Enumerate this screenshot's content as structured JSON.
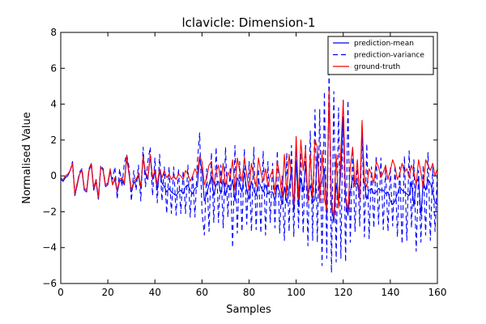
{
  "chart_data": {
    "type": "line",
    "title": "lclavicle: Dimension-1",
    "xlabel": "Samples",
    "ylabel": "Normalised Value",
    "xlim": [
      0,
      160
    ],
    "ylim": [
      -6,
      8
    ],
    "xticks": [
      0,
      20,
      40,
      60,
      80,
      100,
      120,
      140,
      160
    ],
    "yticks": [
      -6,
      -4,
      -2,
      0,
      2,
      4,
      6,
      8
    ],
    "grid": false,
    "legend_position": "top-right",
    "series": [
      {
        "name": "prediction-mean",
        "color": "#0000ff",
        "style": "solid",
        "x": [
          0,
          1,
          2,
          3,
          4,
          5,
          6,
          7,
          8,
          9,
          10,
          11,
          12,
          13,
          14,
          15,
          16,
          17,
          18,
          19,
          20,
          21,
          22,
          23,
          24,
          25,
          26,
          27,
          28,
          29,
          30,
          31,
          32,
          33,
          34,
          35,
          36,
          37,
          38,
          39,
          40,
          41,
          42,
          43,
          44,
          45,
          46,
          47,
          48,
          49,
          50,
          51,
          52,
          53,
          54,
          55,
          56,
          57,
          58,
          59,
          60,
          61,
          62,
          63,
          64,
          65,
          66,
          67,
          68,
          69,
          70,
          71,
          72,
          73,
          74,
          75,
          76,
          77,
          78,
          79,
          80,
          81,
          82,
          83,
          84,
          85,
          86,
          87,
          88,
          89,
          90,
          91,
          92,
          93,
          94,
          95,
          96,
          97,
          98,
          99,
          100,
          101,
          102,
          103,
          104,
          105,
          106,
          107,
          108,
          109,
          110,
          111,
          112,
          113,
          114,
          115,
          116,
          117,
          118,
          119,
          120,
          121,
          122,
          123,
          124,
          125,
          126,
          127,
          128,
          129,
          130,
          131,
          132,
          133,
          134,
          135,
          136,
          137,
          138,
          139,
          140,
          141,
          142,
          143,
          144,
          145,
          146,
          147,
          148,
          149,
          150,
          151,
          152,
          153,
          154,
          155,
          156,
          157,
          158,
          159,
          160
        ],
        "y": [
          -0.2,
          -0.3,
          -0.1,
          0.0,
          0.3,
          0.7,
          -1.1,
          -0.5,
          0.1,
          0.3,
          -0.8,
          -0.9,
          0.3,
          0.6,
          -0.8,
          -0.3,
          -1.3,
          0.5,
          0.3,
          -0.6,
          -0.5,
          0.3,
          -0.5,
          -0.2,
          -0.9,
          -0.3,
          -0.2,
          -0.5,
          1.0,
          0.1,
          -0.9,
          -0.4,
          -0.3,
          0.0,
          -0.7,
          1.0,
          0.1,
          -0.2,
          1.1,
          -0.2,
          0.2,
          -0.8,
          0.3,
          -0.4,
          -0.6,
          -0.9,
          -0.7,
          -0.9,
          -1.0,
          -1.1,
          -0.9,
          -0.8,
          -1.0,
          -0.6,
          -0.5,
          -0.8,
          -1.0,
          -0.7,
          -0.6,
          1.0,
          0.3,
          -1.4,
          -1.0,
          -0.5,
          0.0,
          -1.1,
          -0.5,
          -0.3,
          -1.0,
          -0.2,
          -1.1,
          -0.5,
          -0.8,
          -0.2,
          -1.4,
          -0.1,
          -0.4,
          -0.9,
          0.2,
          -0.8,
          -1.3,
          -0.3,
          -0.8,
          -1.1,
          -0.3,
          -0.6,
          -0.9,
          -0.5,
          -1.0,
          -0.9,
          -0.9,
          -1.4,
          -0.5,
          -0.9,
          -1.6,
          -0.6,
          -1.5,
          -0.8,
          0.5,
          -2.0,
          0.8,
          -1.7,
          -0.1,
          -0.9,
          0.6,
          -1.1,
          -0.5,
          -1.5,
          -1.3,
          1.3,
          -0.7,
          -0.3,
          0.4,
          -2.2,
          4.5,
          -1.7,
          -2.6,
          -0.4,
          -1.6,
          0.3,
          3.2,
          -1.3,
          -2.2,
          -0.9,
          -0.1,
          -0.5,
          -0.4,
          -1.2,
          2.6,
          -0.5,
          -1.3,
          -0.8,
          -0.7,
          -1.0,
          -0.9,
          -0.7,
          -0.8,
          -0.8,
          -1.0,
          -0.9,
          -1.4,
          -1.6,
          -1.4,
          -1.0,
          -0.6,
          -0.8,
          -0.9,
          -1.0,
          -1.1,
          -0.3,
          -1.7,
          -0.4,
          -0.1,
          -2.2,
          -0.3,
          -0.8,
          -0.2,
          -0.4,
          -0.9,
          -1.5,
          -1.6
        ]
      },
      {
        "name": "prediction-variance",
        "color": "#0000ff",
        "style": "dashed",
        "x": [
          0,
          1,
          2,
          3,
          4,
          5,
          6,
          7,
          8,
          9,
          10,
          11,
          12,
          13,
          14,
          15,
          16,
          17,
          18,
          19,
          20,
          21,
          22,
          23,
          24,
          25,
          26,
          27,
          28,
          29,
          30,
          31,
          32,
          33,
          34,
          35,
          36,
          37,
          38,
          39,
          40,
          41,
          42,
          43,
          44,
          45,
          46,
          47,
          48,
          49,
          50,
          51,
          52,
          53,
          54,
          55,
          56,
          57,
          58,
          59,
          60,
          61,
          62,
          63,
          64,
          65,
          66,
          67,
          68,
          69,
          70,
          71,
          72,
          73,
          74,
          75,
          76,
          77,
          78,
          79,
          80,
          81,
          82,
          83,
          84,
          85,
          86,
          87,
          88,
          89,
          90,
          91,
          92,
          93,
          94,
          95,
          96,
          97,
          98,
          99,
          100,
          101,
          102,
          103,
          104,
          105,
          106,
          107,
          108,
          109,
          110,
          111,
          112,
          113,
          114,
          115,
          116,
          117,
          118,
          119,
          120,
          121,
          122,
          123,
          124,
          125,
          126,
          127,
          128,
          129,
          130,
          131,
          132,
          133,
          134,
          135,
          136,
          137,
          138,
          139,
          140,
          141,
          142,
          143,
          144,
          145,
          146,
          147,
          148,
          149,
          150,
          151,
          152,
          153,
          154,
          155,
          156,
          157,
          158,
          159,
          160
        ],
        "y": [
          -0.1,
          -0.3,
          0.0,
          0.1,
          0.3,
          0.8,
          -1.0,
          -0.4,
          0.2,
          0.4,
          -0.7,
          -0.8,
          0.4,
          0.7,
          -0.7,
          -0.2,
          -1.3,
          0.6,
          0.4,
          -0.5,
          -0.4,
          0.3,
          -0.2,
          0.5,
          -1.3,
          0.4,
          -0.6,
          0.7,
          1.2,
          0.5,
          -1.4,
          0.3,
          -0.8,
          0.6,
          -1.4,
          1.6,
          -0.6,
          0.8,
          1.6,
          -1.1,
          1.0,
          -1.5,
          1.2,
          -1.4,
          0.5,
          -2.1,
          0.5,
          -2.1,
          0.5,
          -2.2,
          0.4,
          -2.1,
          0.3,
          -2.1,
          0.6,
          -2.3,
          0.1,
          -2.3,
          0.7,
          2.4,
          -2.0,
          -3.3,
          0.4,
          -3.1,
          1.3,
          -2.6,
          1.6,
          -2.6,
          0.6,
          -2.9,
          1.6,
          -2.3,
          0.5,
          -4.0,
          1.7,
          -3.2,
          0.8,
          -3.1,
          1.5,
          -2.7,
          0.8,
          -3.1,
          1.6,
          -3.0,
          0.4,
          -3.2,
          1.4,
          -3.3,
          0.8,
          -2.6,
          0.7,
          -2.9,
          1.4,
          -3.2,
          0.0,
          -3.6,
          1.3,
          -3.1,
          1.7,
          -3.4,
          2.0,
          -2.9,
          1.3,
          -3.2,
          1.8,
          -3.9,
          2.5,
          -3.6,
          3.7,
          -3.7,
          3.7,
          -5.0,
          4.7,
          -4.6,
          6.2,
          -5.4,
          4.7,
          -4.8,
          3.8,
          -4.6,
          4.3,
          -4.8,
          4.2,
          -3.7,
          1.5,
          -3.1,
          0.9,
          -2.8,
          2.8,
          -3.4,
          1.8,
          -3.5,
          0.5,
          -2.9,
          1.1,
          -2.7,
          1.0,
          -3.0,
          0.5,
          -3.1,
          0.5,
          -2.8,
          0.6,
          -3.4,
          0.5,
          -3.8,
          1.1,
          -3.6,
          1.4,
          -2.9,
          0.9,
          -4.2,
          0.3,
          -3.7,
          0.6,
          -3.3,
          1.3,
          -3.6,
          0.5,
          -3.1,
          0.3
        ]
      },
      {
        "name": "ground-truth",
        "color": "#ff0000",
        "style": "solid",
        "x": [
          0,
          1,
          2,
          3,
          4,
          5,
          6,
          7,
          8,
          9,
          10,
          11,
          12,
          13,
          14,
          15,
          16,
          17,
          18,
          19,
          20,
          21,
          22,
          23,
          24,
          25,
          26,
          27,
          28,
          29,
          30,
          31,
          32,
          33,
          34,
          35,
          36,
          37,
          38,
          39,
          40,
          41,
          42,
          43,
          44,
          45,
          46,
          47,
          48,
          49,
          50,
          51,
          52,
          53,
          54,
          55,
          56,
          57,
          58,
          59,
          60,
          61,
          62,
          63,
          64,
          65,
          66,
          67,
          68,
          69,
          70,
          71,
          72,
          73,
          74,
          75,
          76,
          77,
          78,
          79,
          80,
          81,
          82,
          83,
          84,
          85,
          86,
          87,
          88,
          89,
          90,
          91,
          92,
          93,
          94,
          95,
          96,
          97,
          98,
          99,
          100,
          101,
          102,
          103,
          104,
          105,
          106,
          107,
          108,
          109,
          110,
          111,
          112,
          113,
          114,
          115,
          116,
          117,
          118,
          119,
          120,
          121,
          122,
          123,
          124,
          125,
          126,
          127,
          128,
          129,
          130,
          131,
          132,
          133,
          134,
          135,
          136,
          137,
          138,
          139,
          140,
          141,
          142,
          143,
          144,
          145,
          146,
          147,
          148,
          149,
          150,
          151,
          152,
          153,
          154,
          155,
          156,
          157,
          158,
          159,
          160
        ],
        "y": [
          -0.2,
          -0.2,
          0.0,
          0.1,
          0.3,
          0.7,
          -1.0,
          -0.4,
          0.1,
          0.3,
          -0.7,
          -0.8,
          0.3,
          0.7,
          -0.7,
          -0.2,
          -1.2,
          0.5,
          0.3,
          -0.5,
          -0.4,
          0.4,
          -0.5,
          -0.1,
          -0.8,
          -0.2,
          -0.1,
          -0.4,
          1.1,
          0.2,
          -0.8,
          -0.3,
          -0.2,
          0.1,
          -0.6,
          1.1,
          0.2,
          -0.1,
          1.2,
          -0.1,
          0.3,
          -0.5,
          0.4,
          -0.1,
          0.3,
          -0.1,
          0.1,
          -0.2,
          0.0,
          -0.2,
          0.1,
          0.0,
          -0.2,
          0.3,
          0.1,
          -0.3,
          0.0,
          0.4,
          0.1,
          1.1,
          0.8,
          -0.5,
          -0.1,
          0.6,
          0.8,
          -0.5,
          0.2,
          0.6,
          -0.4,
          0.7,
          -0.6,
          0.2,
          -0.1,
          0.9,
          -0.8,
          1.0,
          0.3,
          -0.3,
          1.0,
          0.1,
          -0.8,
          0.7,
          0.0,
          -0.6,
          1.0,
          0.2,
          -0.3,
          0.4,
          -0.6,
          0.0,
          0.3,
          -1.0,
          0.8,
          0.0,
          -1.2,
          1.2,
          -1.1,
          1.2,
          0.0,
          -1.6,
          2.2,
          -1.3,
          2.0,
          0.3,
          1.5,
          -1.5,
          1.2,
          -1.2,
          2.0,
          1.6,
          -1.5,
          1.4,
          -1.3,
          -1.9,
          4.8,
          -1.5,
          -2.3,
          1.2,
          -1.8,
          1.5,
          4.2,
          -1.2,
          -1.9,
          0.5,
          1.6,
          -0.6,
          0.9,
          -1.3,
          3.1,
          -0.3,
          -0.6,
          0.4,
          0.1,
          -0.4,
          0.8,
          0.5,
          -0.1,
          0.2,
          0.6,
          -0.2,
          0.3,
          0.9,
          0.5,
          -0.2,
          0.1,
          0.7,
          0.2,
          0.4,
          -0.1,
          0.6,
          0.2,
          -0.5,
          0.9,
          0.2,
          -0.7,
          0.9,
          0.6,
          0.3,
          0.7,
          0.0,
          0.4
        ]
      }
    ]
  }
}
